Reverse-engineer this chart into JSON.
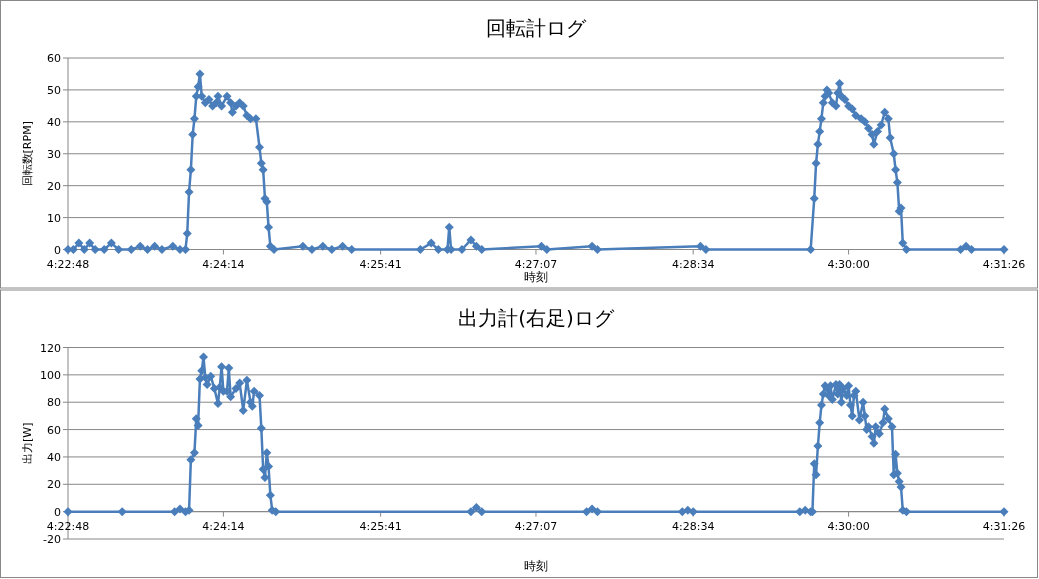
{
  "chart_data": [
    {
      "type": "line",
      "title": "回転計ログ",
      "xlabel": "時刻",
      "ylabel": "回転数[RPM]",
      "grid": "y",
      "marker": "diamond",
      "xlim": [
        4.38,
        4.52389
      ],
      "ylim": [
        0,
        60
      ],
      "yticks": [
        0,
        10,
        20,
        30,
        40,
        50,
        60
      ],
      "xticks": [
        {
          "value": 4.38,
          "label": "4:22:48"
        },
        {
          "value": 4.40389,
          "label": "4:24:14"
        },
        {
          "value": 4.42806,
          "label": "4:25:41"
        },
        {
          "value": 4.45194,
          "label": "4:27:07"
        },
        {
          "value": 4.47611,
          "label": "4:28:34"
        },
        {
          "value": 4.5,
          "label": "4:30:00"
        },
        {
          "value": 4.52389,
          "label": "4:31:26"
        }
      ],
      "x": [
        4.38,
        4.38083,
        4.38167,
        4.3825,
        4.38333,
        4.38417,
        4.38556,
        4.38667,
        4.38778,
        4.38972,
        4.39111,
        4.39222,
        4.39333,
        4.39444,
        4.39611,
        4.39722,
        4.39806,
        4.39833,
        4.39861,
        4.39889,
        4.39917,
        4.39944,
        4.39972,
        4.4,
        4.40028,
        4.40056,
        4.40111,
        4.40167,
        4.40222,
        4.40278,
        4.40306,
        4.40361,
        4.40444,
        4.405,
        4.40528,
        4.40583,
        4.40639,
        4.40694,
        4.4075,
        4.40806,
        4.40889,
        4.40944,
        4.40972,
        4.41,
        4.41028,
        4.41056,
        4.41083,
        4.41111,
        4.41167,
        4.41611,
        4.4175,
        4.41917,
        4.42056,
        4.42222,
        4.42361,
        4.43417,
        4.43583,
        4.43694,
        4.43833,
        4.43861,
        4.43889,
        4.44056,
        4.44194,
        4.44278,
        4.44361,
        4.45278,
        4.45361,
        4.46056,
        4.46139,
        4.47722,
        4.47806,
        4.49417,
        4.49472,
        4.495,
        4.49528,
        4.49556,
        4.49583,
        4.49611,
        4.49639,
        4.49667,
        4.49694,
        4.4975,
        4.49806,
        4.49833,
        4.49861,
        4.49889,
        4.49944,
        4.5,
        4.50056,
        4.50111,
        4.50194,
        4.5025,
        4.50306,
        4.50361,
        4.50389,
        4.50444,
        4.505,
        4.50556,
        4.50611,
        4.50639,
        4.50694,
        4.50722,
        4.5075,
        4.50778,
        4.50806,
        4.50833,
        4.50889,
        4.51722,
        4.51806,
        4.51889,
        4.52389
      ],
      "series": [
        {
          "color": "#4a7ebb",
          "values": [
            0,
            0,
            2,
            0,
            2,
            0,
            0,
            2,
            0,
            0,
            1,
            0,
            1,
            0,
            1,
            0,
            0,
            5,
            18,
            25,
            36,
            41,
            48,
            51,
            55,
            48,
            46,
            47,
            45,
            46,
            48,
            45,
            48,
            46,
            43,
            45,
            46,
            45,
            42,
            41,
            41,
            32,
            27,
            25,
            16,
            15,
            7,
            1,
            0,
            1,
            0,
            1,
            0,
            1,
            0,
            0,
            2,
            0,
            0,
            7,
            0,
            0,
            3,
            1,
            0,
            1,
            0,
            1,
            0,
            1,
            0,
            0,
            16,
            27,
            33,
            37,
            41,
            46,
            48,
            50,
            49,
            46,
            45,
            49,
            52,
            48,
            47,
            45,
            44,
            42,
            41,
            40,
            38,
            36,
            33,
            37,
            39,
            43,
            41,
            35,
            30,
            25,
            21,
            12,
            13,
            2,
            0,
            0,
            1,
            0,
            0
          ]
        }
      ]
    },
    {
      "type": "line",
      "title": "出力計(右足)ログ",
      "xlabel": "時刻",
      "ylabel": "出力[W]",
      "grid": "y",
      "marker": "diamond",
      "xlim": [
        4.38,
        4.52389
      ],
      "ylim": [
        -20,
        120
      ],
      "yticks": [
        -20,
        0,
        20,
        40,
        60,
        80,
        100,
        120
      ],
      "xticks": [
        {
          "value": 4.38,
          "label": "4:22:48"
        },
        {
          "value": 4.40389,
          "label": "4:24:14"
        },
        {
          "value": 4.42806,
          "label": "4:25:41"
        },
        {
          "value": 4.45194,
          "label": "4:27:07"
        },
        {
          "value": 4.47611,
          "label": "4:28:34"
        },
        {
          "value": 4.5,
          "label": "4:30:00"
        },
        {
          "value": 4.52389,
          "label": "4:31:26"
        }
      ],
      "x": [
        4.38,
        4.38833,
        4.39639,
        4.39722,
        4.39806,
        4.39861,
        4.39889,
        4.39944,
        4.39972,
        4.4,
        4.40028,
        4.40056,
        4.40083,
        4.40111,
        4.40139,
        4.40194,
        4.4025,
        4.40306,
        4.40333,
        4.40361,
        4.40389,
        4.40444,
        4.40472,
        4.405,
        4.40583,
        4.40639,
        4.40694,
        4.4075,
        4.40806,
        4.40833,
        4.40861,
        4.40944,
        4.40972,
        4.41,
        4.41028,
        4.41056,
        4.41083,
        4.41111,
        4.41139,
        4.41194,
        4.44194,
        4.44278,
        4.44361,
        4.45972,
        4.46056,
        4.46139,
        4.47444,
        4.47528,
        4.47611,
        4.4925,
        4.49333,
        4.49417,
        4.49444,
        4.49472,
        4.495,
        4.49528,
        4.49556,
        4.49583,
        4.49611,
        4.49639,
        4.49667,
        4.49694,
        4.49722,
        4.4975,
        4.49806,
        4.49833,
        4.49861,
        4.49889,
        4.49917,
        4.49972,
        4.5,
        4.50028,
        4.50056,
        4.50083,
        4.50111,
        4.50167,
        4.50222,
        4.5025,
        4.50278,
        4.50306,
        4.50361,
        4.50389,
        4.50417,
        4.50472,
        4.50528,
        4.50556,
        4.50611,
        4.50667,
        4.50694,
        4.50722,
        4.5075,
        4.50778,
        4.50806,
        4.50833,
        4.50889,
        4.52389
      ],
      "series": [
        {
          "color": "#4a7ebb",
          "values": [
            0,
            0,
            0,
            2,
            0,
            1,
            38,
            43,
            68,
            63,
            97,
            103,
            113,
            98,
            93,
            99,
            90,
            79,
            91,
            106,
            88,
            88,
            105,
            84,
            90,
            94,
            74,
            96,
            80,
            77,
            88,
            85,
            61,
            31,
            25,
            43,
            33,
            12,
            1,
            0,
            0,
            3,
            0,
            0,
            2,
            0,
            0,
            1,
            0,
            0,
            1,
            0,
            0,
            35,
            27,
            48,
            65,
            78,
            86,
            92,
            90,
            85,
            92,
            82,
            93,
            86,
            93,
            80,
            90,
            85,
            92,
            78,
            70,
            85,
            88,
            67,
            80,
            70,
            60,
            62,
            55,
            50,
            62,
            57,
            65,
            75,
            68,
            62,
            27,
            42,
            28,
            22,
            18,
            1,
            0,
            0
          ]
        }
      ]
    }
  ]
}
